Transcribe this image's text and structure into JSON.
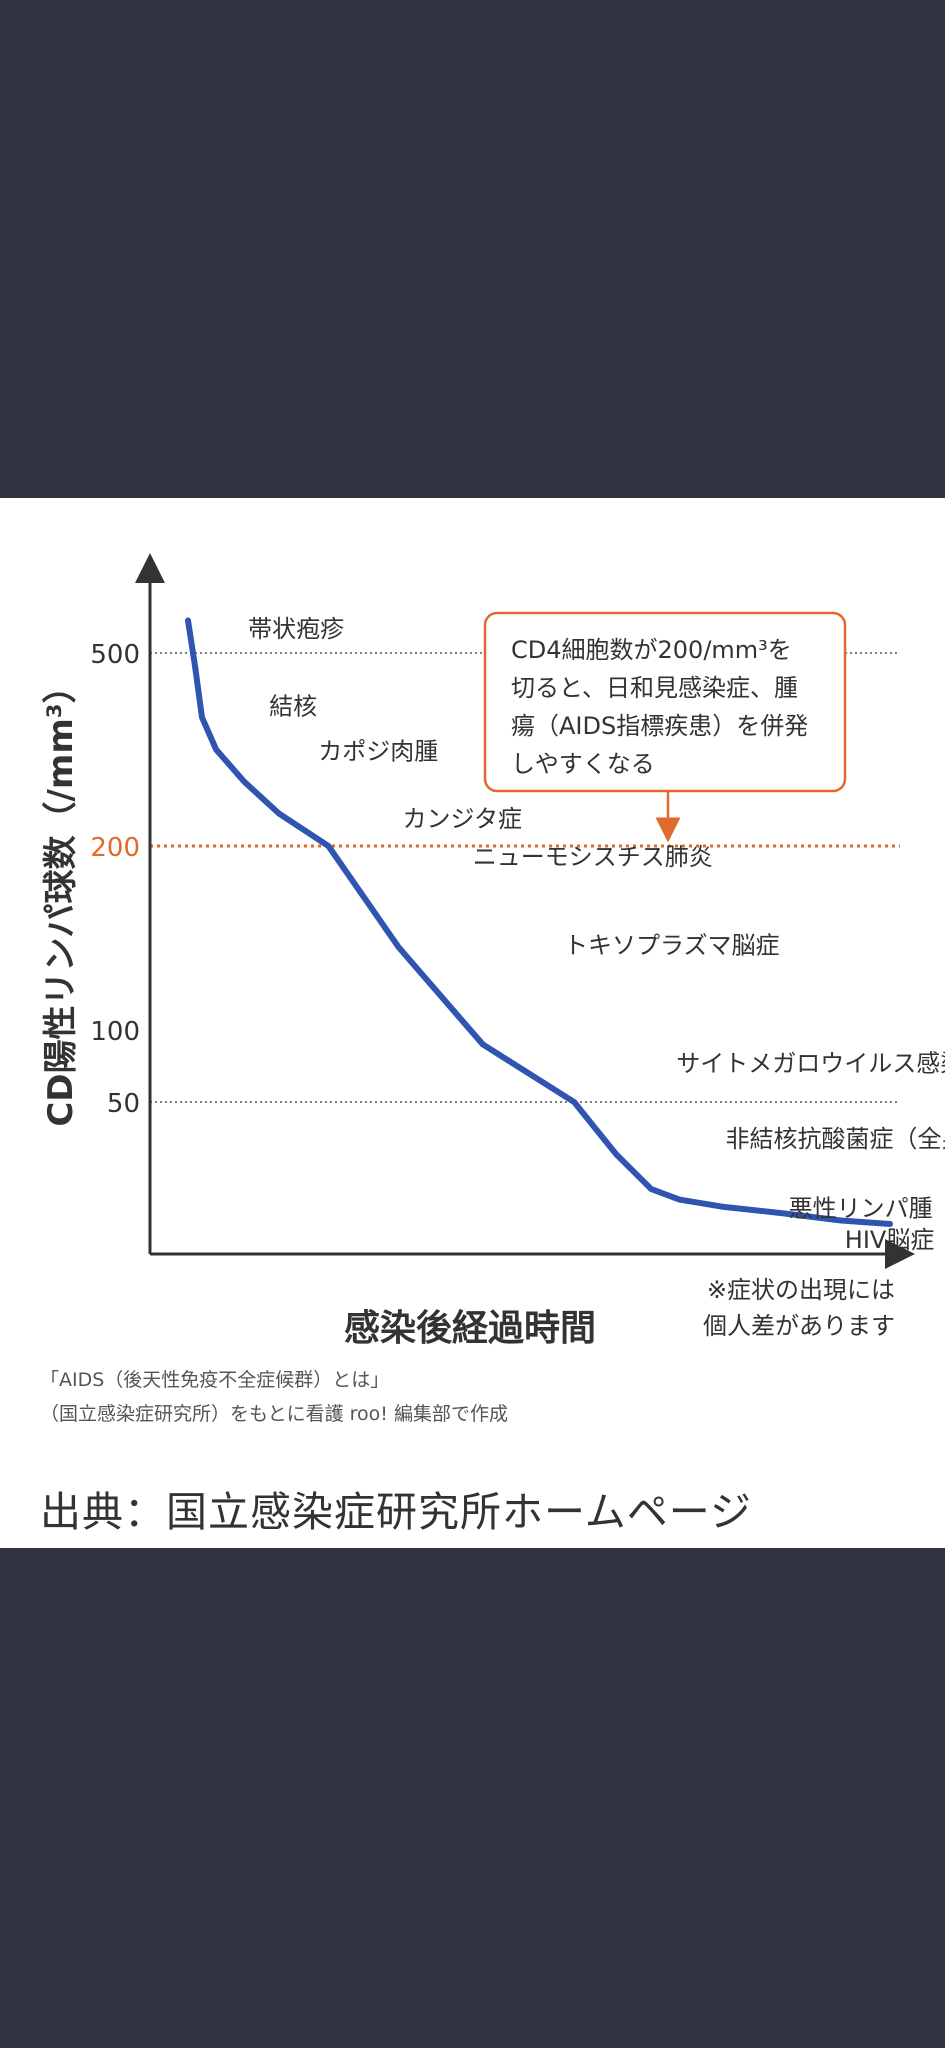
{
  "caption": "出典：国立感染症研究所ホームページ",
  "colors": {
    "background": "#2f333f",
    "curve": "#2f55b0",
    "threshold": "#e06a2c",
    "axis": "#333333",
    "text": "#333333"
  },
  "chart_data": {
    "type": "line",
    "xlabel": "感染後経過時間",
    "ylabel": "CD陽性リンパ球数（/mm³）",
    "ylim": [
      0,
      600
    ],
    "y_ticks": [
      {
        "value": 500,
        "label": "500",
        "highlight": false
      },
      {
        "value": 200,
        "label": "200",
        "highlight": true
      },
      {
        "value": 100,
        "label": "100",
        "highlight": false
      },
      {
        "value": 50,
        "label": "50",
        "highlight": false
      }
    ],
    "reference_lines": [
      500,
      200,
      50
    ],
    "series": [
      {
        "x": [
          0.0,
          0.01,
          0.02,
          0.04,
          0.08,
          0.13,
          0.2,
          0.3,
          0.42,
          0.55,
          0.61,
          0.66,
          0.7,
          0.76,
          0.85,
          0.93,
          1.0
        ],
        "y": [
          550,
          480,
          400,
          350,
          300,
          250,
          200,
          145,
          90,
          50,
          35,
          25,
          22,
          20,
          18,
          16,
          15
        ]
      }
    ],
    "annotations": [
      {
        "text": "帯状疱疹",
        "x": 0.05,
        "y": 540
      },
      {
        "text": "結核",
        "x": 0.08,
        "y": 420
      },
      {
        "text": "カポジ肉腫",
        "x": 0.15,
        "y": 350
      },
      {
        "text": "カンジタ症",
        "x": 0.27,
        "y": 245
      },
      {
        "text": "ニューモシスチス肺炎",
        "x": 0.37,
        "y": 195
      },
      {
        "text": "トキソプラズマ脳症",
        "x": 0.5,
        "y": 147
      },
      {
        "text": "サイトメガロウイルス感染症",
        "x": 0.66,
        "y": 78
      },
      {
        "text": "非結核抗酸菌症（全身性）",
        "x": 0.73,
        "y": 40
      },
      {
        "text": "悪性リンパ腫",
        "x": 0.82,
        "y": 20
      },
      {
        "text": "HIV脳症",
        "x": 0.9,
        "y": 0
      }
    ],
    "callout_lines": [
      "CD4細胞数が200/mm³を",
      "切ると、日和見感染症、腫",
      "瘍（AIDS指標疾患）を併発",
      "しやすくなる"
    ],
    "note_lines": [
      "※症状の出現には",
      "個人差があります"
    ],
    "source_lines": [
      "「AIDS（後天性免疫不全症候群）とは」",
      "（国立感染症研究所）をもとに看護 roo! 編集部で作成"
    ],
    "grid": false
  }
}
